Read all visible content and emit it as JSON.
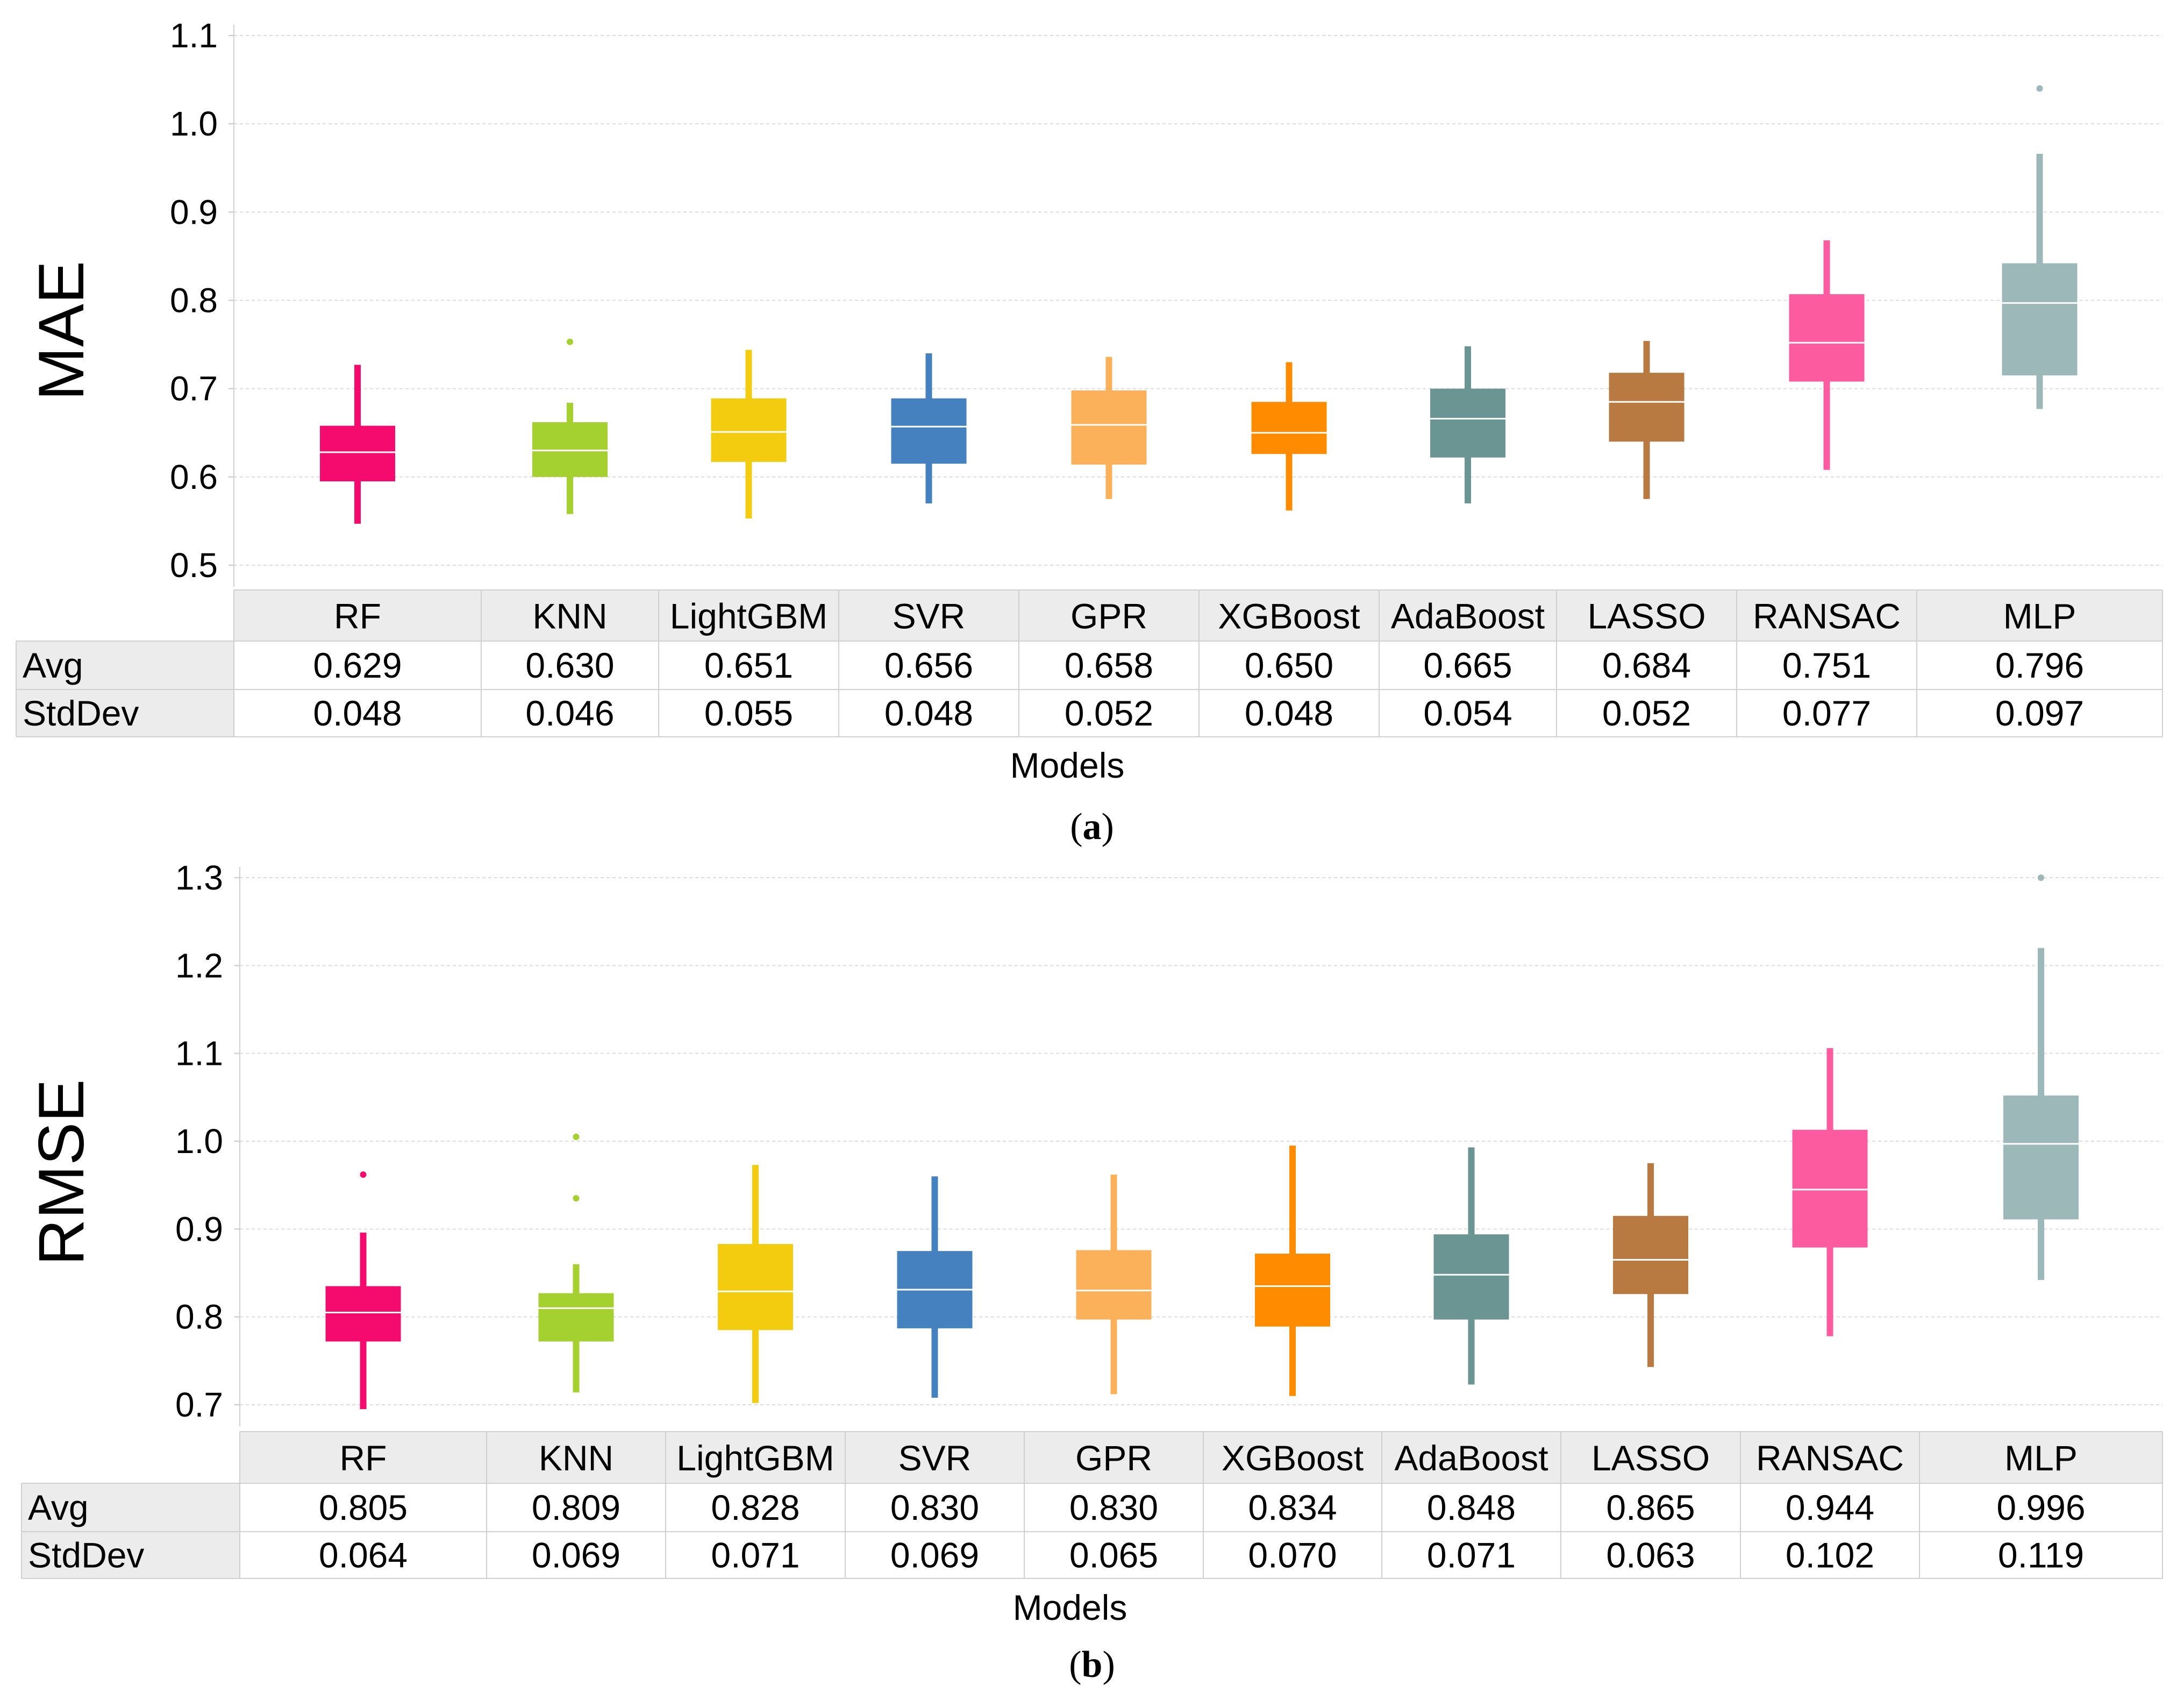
{
  "chart_data": [
    {
      "type": "box",
      "panel_label": "a",
      "ylabel": "MAE",
      "xlabel": "Models",
      "ylim": [
        0.5,
        1.1
      ],
      "yticks": [
        0.5,
        0.6,
        0.7,
        0.8,
        0.9,
        1.0,
        1.1
      ],
      "ytick_labels": [
        "0.5",
        "0.6",
        "0.7",
        "0.8",
        "0.9",
        "1.0",
        "1.1"
      ],
      "row_labels": [
        "Avg",
        "StdDev"
      ],
      "categories": [
        "RF",
        "KNN",
        "LightGBM",
        "SVR",
        "GPR",
        "XGBoost",
        "AdaBoost",
        "LASSO",
        "RANSAC",
        "MLP"
      ],
      "colors": [
        "#f50a6e",
        "#a4d12f",
        "#f3cc10",
        "#4681bf",
        "#fbb159",
        "#ff8c00",
        "#6a9593",
        "#b97a42",
        "#fc5ba0",
        "#9db8b8"
      ],
      "avg": [
        "0.629",
        "0.630",
        "0.651",
        "0.656",
        "0.658",
        "0.650",
        "0.665",
        "0.684",
        "0.751",
        "0.796"
      ],
      "stddev": [
        "0.048",
        "0.046",
        "0.055",
        "0.048",
        "0.052",
        "0.048",
        "0.054",
        "0.052",
        "0.077",
        "0.097"
      ],
      "boxes": [
        {
          "min": 0.547,
          "q1": 0.595,
          "median": 0.628,
          "q3": 0.658,
          "max": 0.727,
          "outliers": []
        },
        {
          "min": 0.558,
          "q1": 0.6,
          "median": 0.63,
          "q3": 0.662,
          "max": 0.684,
          "outliers": [
            0.753
          ]
        },
        {
          "min": 0.553,
          "q1": 0.617,
          "median": 0.651,
          "q3": 0.689,
          "max": 0.744,
          "outliers": []
        },
        {
          "min": 0.57,
          "q1": 0.615,
          "median": 0.657,
          "q3": 0.689,
          "max": 0.74,
          "outliers": []
        },
        {
          "min": 0.575,
          "q1": 0.614,
          "median": 0.659,
          "q3": 0.698,
          "max": 0.736,
          "outliers": []
        },
        {
          "min": 0.562,
          "q1": 0.626,
          "median": 0.65,
          "q3": 0.685,
          "max": 0.73,
          "outliers": []
        },
        {
          "min": 0.57,
          "q1": 0.622,
          "median": 0.666,
          "q3": 0.7,
          "max": 0.748,
          "outliers": []
        },
        {
          "min": 0.575,
          "q1": 0.64,
          "median": 0.685,
          "q3": 0.718,
          "max": 0.754,
          "outliers": []
        },
        {
          "min": 0.608,
          "q1": 0.708,
          "median": 0.752,
          "q3": 0.807,
          "max": 0.868,
          "outliers": []
        },
        {
          "min": 0.677,
          "q1": 0.715,
          "median": 0.797,
          "q3": 0.842,
          "max": 0.966,
          "outliers": [
            1.04
          ]
        }
      ]
    },
    {
      "type": "box",
      "panel_label": "b",
      "ylabel": "RMSE",
      "xlabel": "Models",
      "ylim": [
        0.7,
        1.3
      ],
      "yticks": [
        0.7,
        0.8,
        0.9,
        1.0,
        1.1,
        1.2,
        1.3
      ],
      "ytick_labels": [
        "0.7",
        "0.8",
        "0.9",
        "1.0",
        "1.1",
        "1.2",
        "1.3"
      ],
      "row_labels": [
        "Avg",
        "StdDev"
      ],
      "categories": [
        "RF",
        "KNN",
        "LightGBM",
        "SVR",
        "GPR",
        "XGBoost",
        "AdaBoost",
        "LASSO",
        "RANSAC",
        "MLP"
      ],
      "colors": [
        "#f50a6e",
        "#a4d12f",
        "#f3cc10",
        "#4681bf",
        "#fbb159",
        "#ff8c00",
        "#6a9593",
        "#b97a42",
        "#fc5ba0",
        "#9db8b8"
      ],
      "avg": [
        "0.805",
        "0.809",
        "0.828",
        "0.830",
        "0.830",
        "0.834",
        "0.848",
        "0.865",
        "0.944",
        "0.996"
      ],
      "stddev": [
        "0.064",
        "0.069",
        "0.071",
        "0.069",
        "0.065",
        "0.070",
        "0.071",
        "0.063",
        "0.102",
        "0.119"
      ],
      "boxes": [
        {
          "min": 0.695,
          "q1": 0.772,
          "median": 0.805,
          "q3": 0.835,
          "max": 0.896,
          "outliers": [
            0.962
          ]
        },
        {
          "min": 0.714,
          "q1": 0.772,
          "median": 0.81,
          "q3": 0.827,
          "max": 0.86,
          "outliers": [
            0.935,
            1.005
          ]
        },
        {
          "min": 0.702,
          "q1": 0.785,
          "median": 0.829,
          "q3": 0.883,
          "max": 0.973,
          "outliers": []
        },
        {
          "min": 0.708,
          "q1": 0.787,
          "median": 0.831,
          "q3": 0.875,
          "max": 0.96,
          "outliers": []
        },
        {
          "min": 0.712,
          "q1": 0.797,
          "median": 0.83,
          "q3": 0.876,
          "max": 0.962,
          "outliers": []
        },
        {
          "min": 0.71,
          "q1": 0.789,
          "median": 0.835,
          "q3": 0.872,
          "max": 0.995,
          "outliers": []
        },
        {
          "min": 0.723,
          "q1": 0.797,
          "median": 0.848,
          "q3": 0.894,
          "max": 0.993,
          "outliers": []
        },
        {
          "min": 0.743,
          "q1": 0.826,
          "median": 0.865,
          "q3": 0.915,
          "max": 0.975,
          "outliers": []
        },
        {
          "min": 0.778,
          "q1": 0.879,
          "median": 0.945,
          "q3": 1.013,
          "max": 1.106,
          "outliers": []
        },
        {
          "min": 0.842,
          "q1": 0.911,
          "median": 0.997,
          "q3": 1.052,
          "max": 1.22,
          "outliers": [
            1.3
          ]
        }
      ]
    }
  ]
}
